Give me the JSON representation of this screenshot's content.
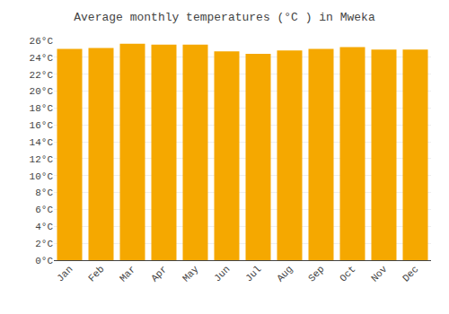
{
  "chart_data": {
    "type": "bar",
    "title": "Average monthly temperatures (°C ) in Mweka",
    "categories": [
      "Jan",
      "Feb",
      "Mar",
      "Apr",
      "May",
      "Jun",
      "Jul",
      "Aug",
      "Sep",
      "Oct",
      "Nov",
      "Dec"
    ],
    "values": [
      25.0,
      25.1,
      25.6,
      25.5,
      25.5,
      24.7,
      24.4,
      24.8,
      25.0,
      25.2,
      24.9,
      24.9
    ],
    "color": "#F5A800",
    "ylim": [
      0,
      26
    ],
    "yticks": [
      {
        "value": 0,
        "label": "0°C"
      },
      {
        "value": 2,
        "label": "2°C"
      },
      {
        "value": 4,
        "label": "4°C"
      },
      {
        "value": 6,
        "label": "6°C"
      },
      {
        "value": 8,
        "label": "8°C"
      },
      {
        "value": 10,
        "label": "10°C"
      },
      {
        "value": 12,
        "label": "12°C"
      },
      {
        "value": 14,
        "label": "14°C"
      },
      {
        "value": 16,
        "label": "16°C"
      },
      {
        "value": 18,
        "label": "18°C"
      },
      {
        "value": 20,
        "label": "20°C"
      },
      {
        "value": 22,
        "label": "22°C"
      },
      {
        "value": 24,
        "label": "24°C"
      },
      {
        "value": 26,
        "label": "26°C"
      }
    ],
    "grid": true
  }
}
